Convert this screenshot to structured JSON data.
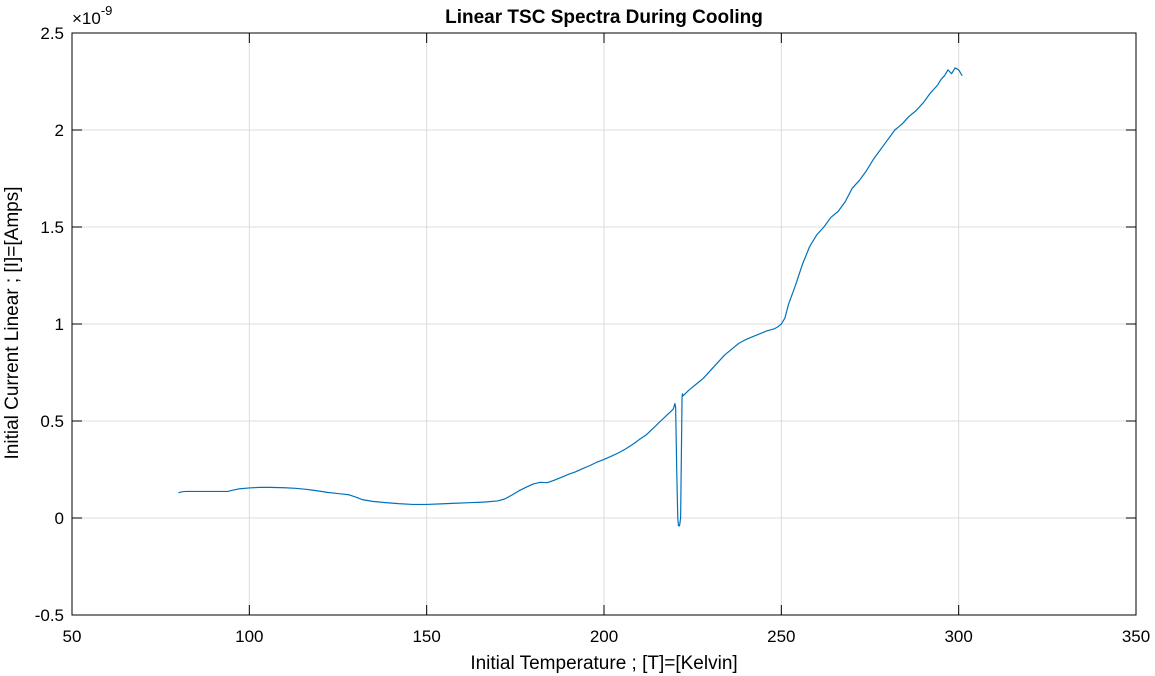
{
  "colors": {
    "series": "#0072BD",
    "grid": "#dcdcdc",
    "axes": "#000000",
    "background": "#ffffff"
  },
  "chart_data": {
    "type": "line",
    "title": "Linear TSC Spectra During Cooling",
    "xlabel": "Initial Temperature ; [T]=[Kelvin]",
    "ylabel": "Initial Current Linear ; [I]=[Amps]",
    "xlim": [
      50,
      350
    ],
    "ylim": [
      -0.5,
      2.5
    ],
    "y_scale_exponent": {
      "base": "×10",
      "power": "-9"
    },
    "x_ticks": [
      "50",
      "100",
      "150",
      "200",
      "250",
      "300",
      "350"
    ],
    "y_ticks": [
      "-0.5",
      "0",
      "0.5",
      "1",
      "1.5",
      "2",
      "2.5"
    ],
    "grid": true,
    "box": true,
    "series": [
      {
        "x": [
          80,
          81,
          82,
          84,
          86,
          88,
          90,
          92,
          94,
          95,
          97,
          100,
          103,
          106,
          110,
          113,
          116,
          118,
          120,
          122,
          124,
          126,
          128,
          130,
          132,
          135,
          138,
          142,
          146,
          150,
          154,
          158,
          162,
          166,
          170,
          172,
          174,
          176,
          178,
          180,
          182,
          184,
          186,
          188,
          190,
          192,
          194,
          196,
          198,
          200,
          202,
          204,
          206,
          208,
          210,
          212,
          214,
          216,
          218,
          219.5,
          220,
          220.2,
          220.5,
          220.8,
          221,
          221.3,
          221.6,
          221.8,
          222,
          222.1,
          222.3,
          224,
          226,
          228,
          230,
          232,
          234,
          236,
          238,
          240,
          242,
          244,
          246,
          248,
          249,
          250,
          251,
          252,
          254,
          256,
          258,
          260,
          262,
          264,
          266,
          268,
          270,
          272,
          274,
          276,
          278,
          280,
          282,
          284,
          286,
          288,
          290,
          292,
          294,
          295,
          296,
          297,
          298,
          299,
          300,
          301
        ],
        "y": [
          0.13,
          0.135,
          0.137,
          0.137,
          0.137,
          0.137,
          0.137,
          0.137,
          0.137,
          0.142,
          0.15,
          0.155,
          0.158,
          0.158,
          0.156,
          0.153,
          0.148,
          0.143,
          0.138,
          0.132,
          0.128,
          0.124,
          0.12,
          0.108,
          0.094,
          0.085,
          0.08,
          0.074,
          0.07,
          0.07,
          0.073,
          0.076,
          0.079,
          0.082,
          0.088,
          0.098,
          0.118,
          0.14,
          0.158,
          0.175,
          0.184,
          0.182,
          0.195,
          0.21,
          0.225,
          0.238,
          0.255,
          0.27,
          0.288,
          0.302,
          0.318,
          0.335,
          0.355,
          0.378,
          0.405,
          0.43,
          0.465,
          0.5,
          0.535,
          0.56,
          0.59,
          0.57,
          0.25,
          0.0,
          -0.04,
          -0.04,
          0.0,
          0.3,
          0.62,
          0.64,
          0.63,
          0.66,
          0.69,
          0.72,
          0.76,
          0.8,
          0.84,
          0.87,
          0.9,
          0.92,
          0.935,
          0.95,
          0.965,
          0.975,
          0.985,
          1.0,
          1.03,
          1.1,
          1.2,
          1.31,
          1.4,
          1.46,
          1.5,
          1.55,
          1.58,
          1.63,
          1.7,
          1.74,
          1.79,
          1.85,
          1.9,
          1.95,
          2.0,
          2.03,
          2.07,
          2.1,
          2.14,
          2.19,
          2.23,
          2.26,
          2.28,
          2.31,
          2.29,
          2.32,
          2.31,
          2.28
        ]
      }
    ]
  }
}
